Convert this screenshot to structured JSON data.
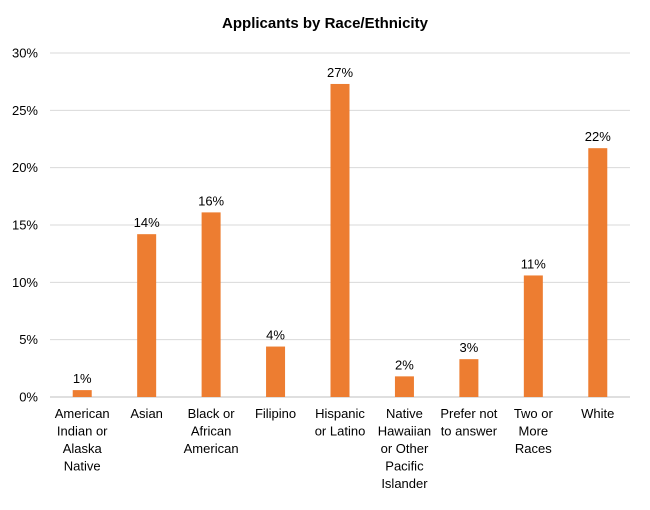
{
  "chart_data": {
    "type": "bar",
    "title": "Applicants by Race/Ethnicity",
    "xlabel": "",
    "ylabel": "",
    "categories": [
      [
        "American",
        "Indian or",
        "Alaska",
        "Native"
      ],
      [
        "Asian"
      ],
      [
        "Black or",
        "African",
        "American"
      ],
      [
        "Filipino"
      ],
      [
        "Hispanic",
        "or Latino"
      ],
      [
        "Native",
        "Hawaiian",
        "or Other",
        "Pacific",
        "Islander"
      ],
      [
        "Prefer not",
        "to answer"
      ],
      [
        "Two or",
        "More",
        "Races"
      ],
      [
        "White"
      ]
    ],
    "values": [
      0.6,
      14.2,
      16.1,
      4.4,
      27.3,
      1.8,
      3.3,
      10.6,
      21.7
    ],
    "data_labels": [
      "1%",
      "14%",
      "16%",
      "4%",
      "27%",
      "2%",
      "3%",
      "11%",
      "22%"
    ],
    "ylim": [
      0,
      30
    ],
    "yticks": [
      0,
      5,
      10,
      15,
      20,
      25,
      30
    ],
    "ytick_labels": [
      "0%",
      "5%",
      "10%",
      "15%",
      "20%",
      "25%",
      "30%"
    ],
    "grid": true,
    "legend": "none",
    "bar_color": "#ED7D31"
  }
}
